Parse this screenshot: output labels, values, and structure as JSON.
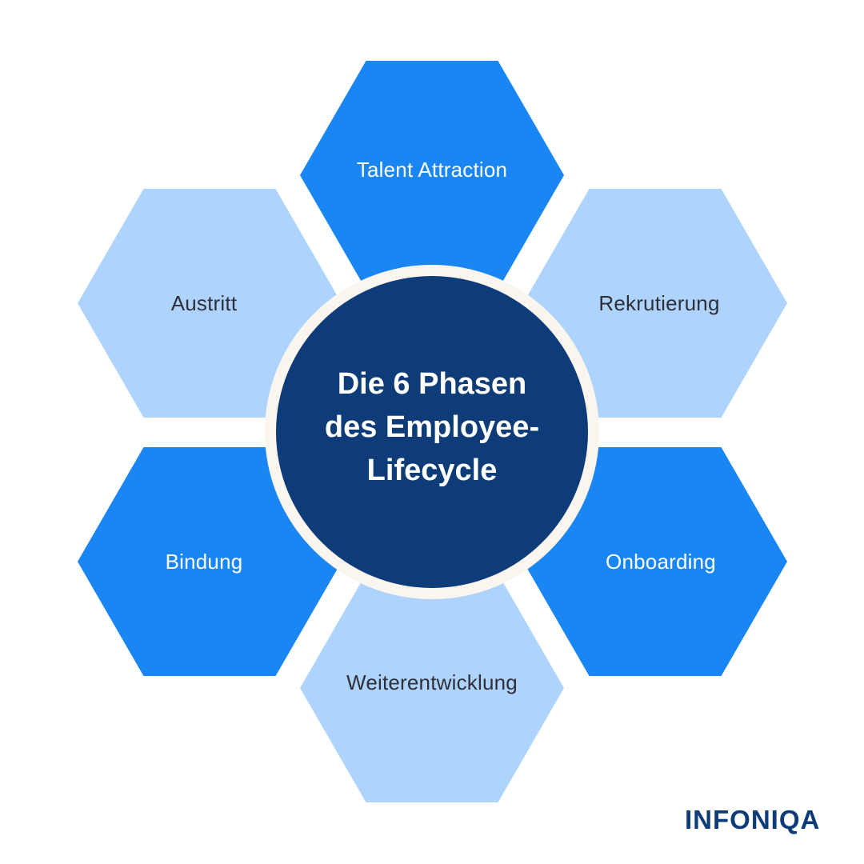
{
  "diagram": {
    "center": {
      "title_lines": [
        "Die 6 Phasen",
        "des Employee-",
        "Lifecycle"
      ]
    },
    "phases": [
      {
        "label": "Talent Attraction",
        "color": "#1a86f3"
      },
      {
        "label": "Rekrutierung",
        "color": "#aed4fd"
      },
      {
        "label": "Onboarding",
        "color": "#1a86f3"
      },
      {
        "label": "Weiterentwicklung",
        "color": "#aed4fd"
      },
      {
        "label": "Bindung",
        "color": "#1a86f3"
      },
      {
        "label": "Austritt",
        "color": "#aed4fd"
      }
    ]
  },
  "brand": {
    "logo_text": "INFONIQA",
    "color": "#0d3c78"
  }
}
